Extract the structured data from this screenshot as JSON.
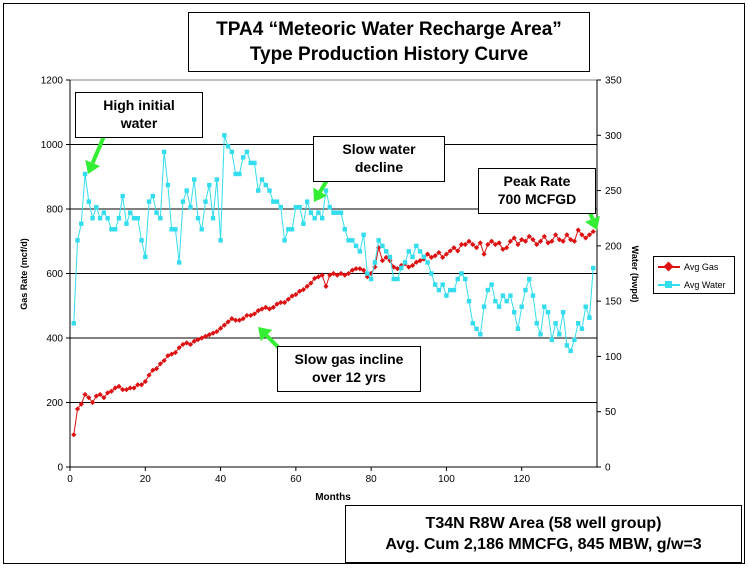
{
  "title": {
    "line1": "TPA4  “Meteoric Water Recharge Area”",
    "line2": "Type Production History Curve"
  },
  "info": {
    "line1": "T34N R8W Area  (58 well group)",
    "line2": "Avg. Cum 2,186 MMCFG,  845 MBW, g/w=3"
  },
  "callouts": [
    {
      "id": "high-initial-water",
      "line1": "High initial",
      "line2": "water"
    },
    {
      "id": "slow-water-decline",
      "line1": "Slow water",
      "line2": "decline"
    },
    {
      "id": "peak-rate",
      "line1": "Peak Rate",
      "line2": "700 MCFGD"
    },
    {
      "id": "slow-gas-incline",
      "line1": "Slow gas incline",
      "line2": "over 12 yrs"
    }
  ],
  "colors": {
    "gas": "#dd1111",
    "water": "#33ddee",
    "arrow": "#33ee33",
    "gridline": "#000000",
    "text": "#000000"
  },
  "chart_data": {
    "type": "line",
    "xlabel": "Months",
    "ylabel": "Gas Rate (mcf/d)",
    "y2label": "Water (bwpd)",
    "xlim": [
      0,
      140
    ],
    "ylim": [
      0,
      1200
    ],
    "y2lim": [
      0,
      350
    ],
    "x_ticks": [
      "0",
      "20",
      "40",
      "60",
      "80",
      "100",
      "120"
    ],
    "y_ticks": [
      "0",
      "200",
      "400",
      "600",
      "800",
      "1000",
      "1200"
    ],
    "y2_ticks": [
      "0",
      "50",
      "100",
      "150",
      "200",
      "250",
      "300",
      "350"
    ],
    "grid": "horizontal",
    "legend_position": "right",
    "x": [
      1,
      2,
      3,
      4,
      5,
      6,
      7,
      8,
      9,
      10,
      11,
      12,
      13,
      14,
      15,
      16,
      17,
      18,
      19,
      20,
      21,
      22,
      23,
      24,
      25,
      26,
      27,
      28,
      29,
      30,
      31,
      32,
      33,
      34,
      35,
      36,
      37,
      38,
      39,
      40,
      41,
      42,
      43,
      44,
      45,
      46,
      47,
      48,
      49,
      50,
      51,
      52,
      53,
      54,
      55,
      56,
      57,
      58,
      59,
      60,
      61,
      62,
      63,
      64,
      65,
      66,
      67,
      68,
      69,
      70,
      71,
      72,
      73,
      74,
      75,
      76,
      77,
      78,
      79,
      80,
      81,
      82,
      83,
      84,
      85,
      86,
      87,
      88,
      89,
      90,
      91,
      92,
      93,
      94,
      95,
      96,
      97,
      98,
      99,
      100,
      101,
      102,
      103,
      104,
      105,
      106,
      107,
      108,
      109,
      110,
      111,
      112,
      113,
      114,
      115,
      116,
      117,
      118,
      119,
      120,
      121,
      122,
      123,
      124,
      125,
      126,
      127,
      128,
      129,
      130,
      131,
      132,
      133,
      134,
      135,
      136,
      137,
      138,
      139
    ],
    "series": [
      {
        "name": "Avg Gas",
        "axis": "left",
        "marker": "diamond",
        "values": [
          100,
          180,
          195,
          225,
          215,
          200,
          220,
          225,
          215,
          230,
          235,
          245,
          250,
          240,
          240,
          245,
          245,
          255,
          255,
          265,
          285,
          300,
          305,
          320,
          330,
          345,
          350,
          355,
          370,
          380,
          385,
          380,
          390,
          395,
          400,
          405,
          410,
          415,
          420,
          430,
          440,
          450,
          460,
          455,
          455,
          460,
          470,
          470,
          475,
          485,
          490,
          495,
          490,
          495,
          505,
          510,
          510,
          520,
          530,
          535,
          545,
          550,
          560,
          570,
          585,
          590,
          595,
          560,
          595,
          600,
          595,
          600,
          595,
          600,
          610,
          615,
          615,
          610,
          590,
          600,
          620,
          680,
          640,
          650,
          640,
          620,
          615,
          625,
          630,
          620,
          625,
          635,
          640,
          645,
          660,
          650,
          655,
          665,
          650,
          660,
          670,
          680,
          670,
          690,
          690,
          700,
          690,
          680,
          695,
          660,
          690,
          700,
          690,
          695,
          675,
          680,
          700,
          710,
          690,
          705,
          700,
          715,
          705,
          690,
          700,
          715,
          695,
          700,
          720,
          705,
          700,
          720,
          705,
          700,
          735,
          720,
          710,
          720,
          730
        ]
      },
      {
        "name": "Avg Water",
        "axis": "right",
        "marker": "square",
        "values": [
          130,
          205,
          220,
          265,
          240,
          225,
          235,
          225,
          230,
          225,
          215,
          215,
          225,
          245,
          220,
          230,
          225,
          225,
          205,
          190,
          240,
          245,
          230,
          225,
          285,
          255,
          215,
          215,
          185,
          240,
          250,
          235,
          260,
          225,
          215,
          240,
          255,
          225,
          260,
          205,
          300,
          290,
          285,
          265,
          265,
          280,
          285,
          275,
          275,
          250,
          260,
          255,
          250,
          240,
          240,
          235,
          205,
          215,
          215,
          235,
          235,
          220,
          240,
          230,
          225,
          230,
          225,
          250,
          235,
          230,
          230,
          230,
          215,
          205,
          205,
          200,
          195,
          210,
          175,
          170,
          185,
          205,
          200,
          195,
          190,
          170,
          170,
          180,
          185,
          195,
          190,
          200,
          195,
          190,
          185,
          175,
          165,
          160,
          165,
          155,
          160,
          160,
          170,
          175,
          170,
          150,
          130,
          125,
          120,
          145,
          160,
          165,
          150,
          145,
          155,
          150,
          155,
          140,
          125,
          145,
          160,
          170,
          155,
          130,
          120,
          145,
          140,
          115,
          130,
          120,
          140,
          110,
          105,
          115,
          130,
          125,
          145,
          135,
          180
        ]
      }
    ]
  }
}
